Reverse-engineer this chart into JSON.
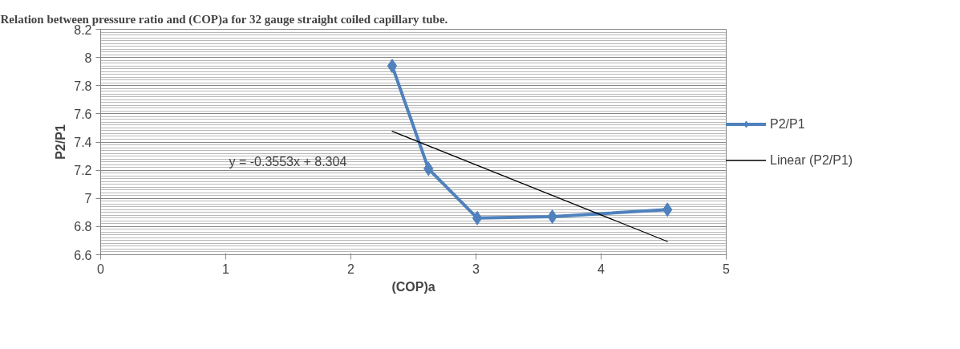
{
  "chart_data": {
    "type": "line",
    "title": "Relation between pressure ratio and (COP)a for 32 gauge straight coiled capillary tube.",
    "xlabel": "(COP)a",
    "ylabel": "P2/P1",
    "series": [
      {
        "name": "P2/P1",
        "color": "#4f81bd",
        "marker": "diamond",
        "x": [
          2.33,
          2.62,
          3.01,
          3.61,
          4.53
        ],
        "values": [
          7.94,
          7.21,
          6.86,
          6.87,
          6.92
        ]
      },
      {
        "name": "Linear (P2/P1)",
        "color": "#000000",
        "marker": "none",
        "x": [
          2.33,
          4.53
        ],
        "values": [
          7.476,
          6.694
        ]
      }
    ],
    "annotations": [
      "y = -0.3553x + 8.304"
    ],
    "xlim": [
      0,
      5
    ],
    "xticks": [
      0,
      1,
      2,
      3,
      4,
      5
    ],
    "ylim": [
      6.6,
      8.2
    ],
    "yticks": [
      6.6,
      6.8,
      7,
      7.2,
      7.4,
      7.6,
      7.8,
      8,
      8.2
    ],
    "grid": "y",
    "legend": "right"
  }
}
